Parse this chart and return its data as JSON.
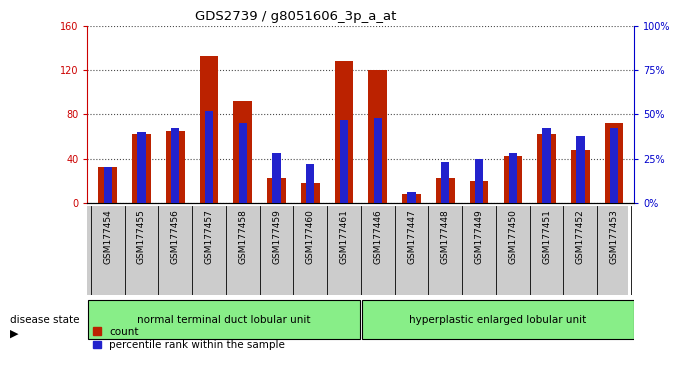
{
  "title": "GDS2739 / g8051606_3p_a_at",
  "samples": [
    "GSM177454",
    "GSM177455",
    "GSM177456",
    "GSM177457",
    "GSM177458",
    "GSM177459",
    "GSM177460",
    "GSM177461",
    "GSM177446",
    "GSM177447",
    "GSM177448",
    "GSM177449",
    "GSM177450",
    "GSM177451",
    "GSM177452",
    "GSM177453"
  ],
  "counts": [
    32,
    62,
    65,
    133,
    92,
    22,
    18,
    128,
    120,
    8,
    22,
    20,
    42,
    62,
    48,
    72
  ],
  "percentiles": [
    20,
    40,
    42,
    52,
    45,
    28,
    22,
    47,
    48,
    6,
    23,
    25,
    28,
    42,
    38,
    42
  ],
  "group1_label": "normal terminal duct lobular unit",
  "group2_label": "hyperplastic enlarged lobular unit",
  "group1_count": 8,
  "group2_count": 8,
  "ylim_left": [
    0,
    160
  ],
  "ylim_right": [
    0,
    100
  ],
  "yticks_left": [
    0,
    40,
    80,
    120,
    160
  ],
  "yticks_right": [
    0,
    25,
    50,
    75,
    100
  ],
  "ytick_labels_left": [
    "0",
    "40",
    "80",
    "120",
    "160"
  ],
  "ytick_labels_right": [
    "0%",
    "25%",
    "50%",
    "75%",
    "100%"
  ],
  "bar_color_red": "#BB2200",
  "bar_color_blue": "#2222CC",
  "axis_color_left": "#CC0000",
  "axis_color_right": "#0000CC",
  "group1_color": "#88EE88",
  "group2_color": "#88EE88",
  "tick_bg_color": "#CCCCCC"
}
